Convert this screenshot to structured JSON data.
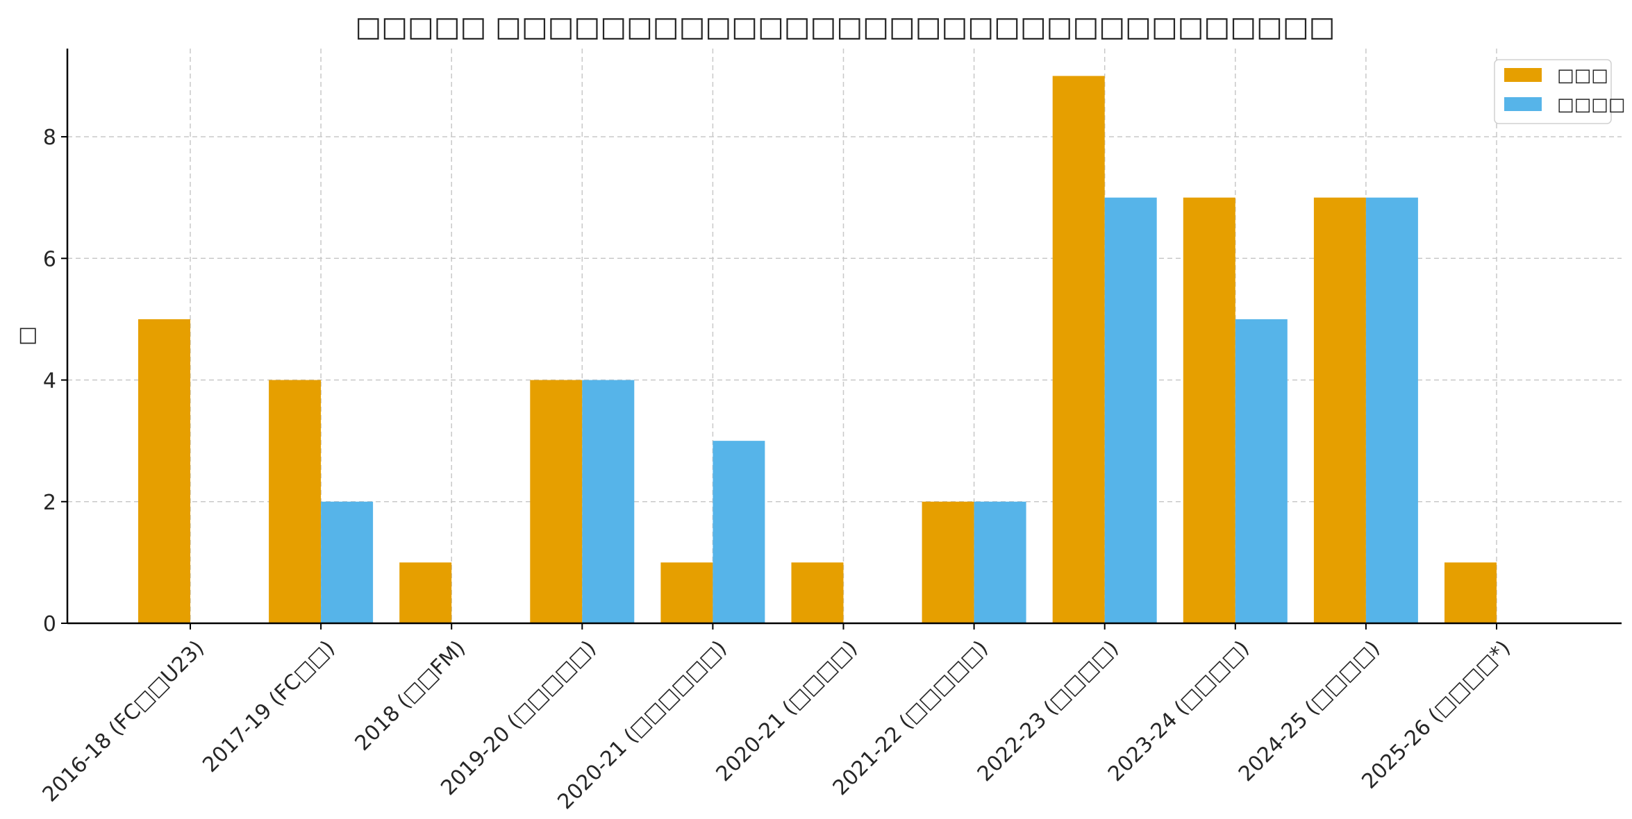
{
  "chart_data": {
    "type": "bar",
    "title": "□□□□□ □□□□□□□□□□□□□□□□□□□□□□□□□□□□□□□□",
    "xlabel": "",
    "ylabel": "□",
    "categories": [
      "2016-18 (FC□□U23)",
      "2017-19 (FC□□)",
      "2018 (□□FM)",
      "2019-20 (□□□□□)",
      "2020-21 (□□□□□□)",
      "2020-21 (□□□□)",
      "2021-22 (□□□□□)",
      "2022-23 (□□□□)",
      "2023-24 (□□□□)",
      "2024-25 (□□□□)",
      "2025-26 (□□□□*)"
    ],
    "series": [
      {
        "name": "□□□",
        "color": "#E69F00",
        "values": [
          5,
          4,
          1,
          4,
          1,
          1,
          2,
          9,
          7,
          7,
          1
        ]
      },
      {
        "name": "□□□□",
        "color": "#56B4E9",
        "values": [
          0,
          2,
          0,
          4,
          3,
          0,
          2,
          7,
          5,
          7,
          0
        ]
      }
    ],
    "ylim": [
      0,
      9.45
    ],
    "yticks": [
      0,
      2,
      4,
      6,
      8
    ],
    "grid": true,
    "legend": "top-right"
  }
}
